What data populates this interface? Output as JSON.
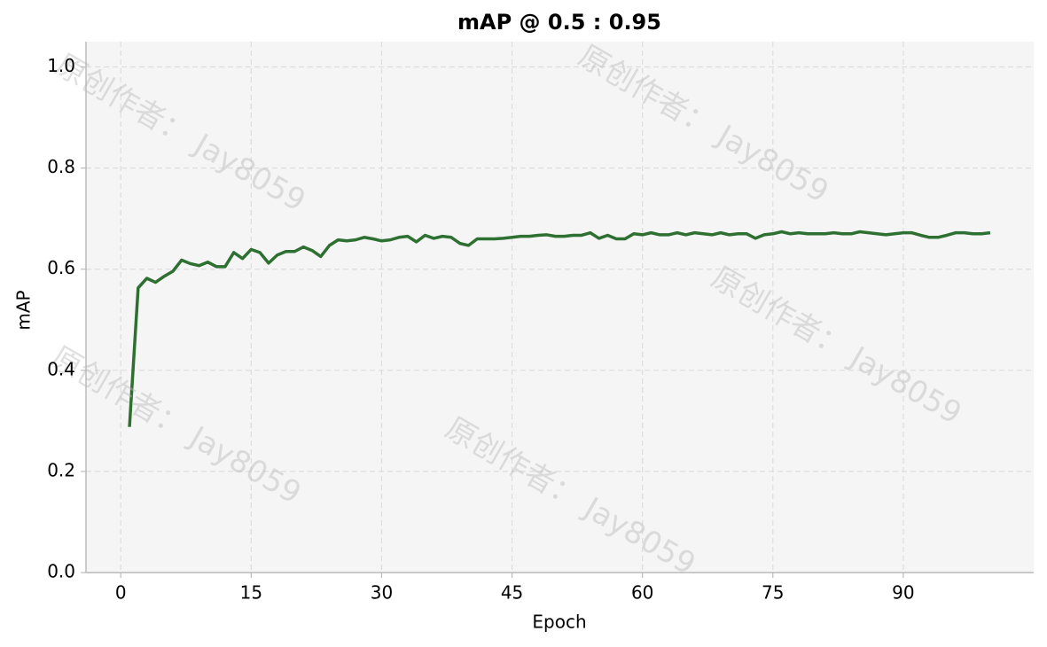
{
  "chart_data": {
    "type": "line",
    "title": "mAP @ 0.5 : 0.95",
    "x_label": "Epoch",
    "y_label": "mAP",
    "watermark": "原创作者： Jay8059",
    "x": [
      1,
      2,
      3,
      4,
      5,
      6,
      7,
      8,
      9,
      10,
      11,
      12,
      13,
      14,
      15,
      16,
      17,
      18,
      19,
      20,
      21,
      22,
      23,
      24,
      25,
      26,
      27,
      28,
      29,
      30,
      31,
      32,
      33,
      34,
      35,
      36,
      37,
      38,
      39,
      40,
      41,
      42,
      43,
      44,
      45,
      46,
      47,
      48,
      49,
      50,
      51,
      52,
      53,
      54,
      55,
      56,
      57,
      58,
      59,
      60,
      61,
      62,
      63,
      64,
      65,
      66,
      67,
      68,
      69,
      70,
      71,
      72,
      73,
      74,
      75,
      76,
      77,
      78,
      79,
      80,
      81,
      82,
      83,
      84,
      85,
      86,
      87,
      88,
      89,
      90,
      91,
      92,
      93,
      94,
      95,
      96,
      97,
      98,
      99,
      100
    ],
    "series": [
      {
        "color": "#2e7032",
        "values": [
          0.288,
          0.563,
          0.582,
          0.574,
          0.586,
          0.596,
          0.618,
          0.611,
          0.607,
          0.614,
          0.605,
          0.605,
          0.633,
          0.621,
          0.639,
          0.633,
          0.612,
          0.628,
          0.635,
          0.635,
          0.644,
          0.637,
          0.625,
          0.647,
          0.658,
          0.656,
          0.658,
          0.663,
          0.66,
          0.656,
          0.658,
          0.663,
          0.665,
          0.654,
          0.667,
          0.661,
          0.665,
          0.663,
          0.651,
          0.647,
          0.66,
          0.66,
          0.66,
          0.661,
          0.663,
          0.665,
          0.665,
          0.667,
          0.668,
          0.665,
          0.665,
          0.667,
          0.667,
          0.672,
          0.661,
          0.667,
          0.66,
          0.66,
          0.67,
          0.668,
          0.672,
          0.668,
          0.668,
          0.672,
          0.668,
          0.672,
          0.67,
          0.668,
          0.672,
          0.668,
          0.67,
          0.67,
          0.661,
          0.668,
          0.67,
          0.674,
          0.67,
          0.672,
          0.67,
          0.67,
          0.67,
          0.672,
          0.67,
          0.67,
          0.674,
          0.672,
          0.67,
          0.668,
          0.67,
          0.672,
          0.672,
          0.667,
          0.663,
          0.663,
          0.667,
          0.672,
          0.672,
          0.67,
          0.67,
          0.672
        ]
      }
    ],
    "xlim": [
      -4,
      105
    ],
    "ylim": [
      0,
      1.05
    ],
    "xticks": [
      0,
      15,
      30,
      45,
      60,
      75,
      90
    ],
    "yticks": [
      {
        "value": 0,
        "label": "0.0"
      },
      {
        "value": 0.2,
        "label": "0.2"
      },
      {
        "value": 0.4,
        "label": "0.4"
      },
      {
        "value": 0.6,
        "label": "0.6"
      },
      {
        "value": 0.8,
        "label": "0.8"
      },
      {
        "value": 1,
        "label": "1.0"
      }
    ],
    "grid": true
  }
}
